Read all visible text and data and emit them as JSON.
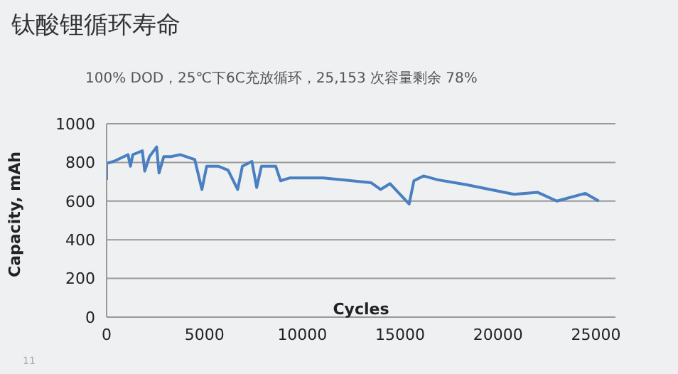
{
  "chart_data": {
    "type": "line",
    "title": "钛酸锂循环寿命",
    "subtitle": "100% DOD，25℃下6C充放循环，25,153 次容量剩余 78%",
    "xlabel": "Cycles",
    "ylabel": "Capacity, mAh",
    "annotations": [
      "11"
    ],
    "x": [
      0,
      0,
      365,
      1095,
      1217,
      1339,
      1826,
      1947,
      2191,
      2556,
      2678,
      2921,
      3286,
      3773,
      4503,
      4869,
      5112,
      5720,
      6207,
      6694,
      6938,
      7425,
      7668,
      7911,
      8642,
      8885,
      9372,
      11076,
      13510,
      13997,
      14484,
      15458,
      15701,
      16188,
      16918,
      18379,
      19596,
      20813,
      22030,
      23004,
      24464,
      25150
    ],
    "series": [
      {
        "color": "#4a7fc1",
        "values": [
          710,
          795,
          805,
          840,
          780,
          840,
          860,
          755,
          830,
          880,
          745,
          830,
          830,
          840,
          815,
          660,
          780,
          780,
          760,
          660,
          780,
          805,
          670,
          780,
          780,
          705,
          720,
          720,
          695,
          660,
          690,
          585,
          705,
          730,
          710,
          685,
          660,
          635,
          645,
          600,
          640,
          600
        ]
      }
    ],
    "xlim": [
      0,
      26000
    ],
    "xticks": [
      0,
      5000,
      10000,
      15000,
      20000,
      25000
    ],
    "ylim": [
      0,
      1000
    ],
    "yticks": [
      0,
      200,
      400,
      600,
      800,
      1000
    ],
    "grid": "y",
    "marker": "none",
    "line_style": "solid",
    "legend": false
  }
}
